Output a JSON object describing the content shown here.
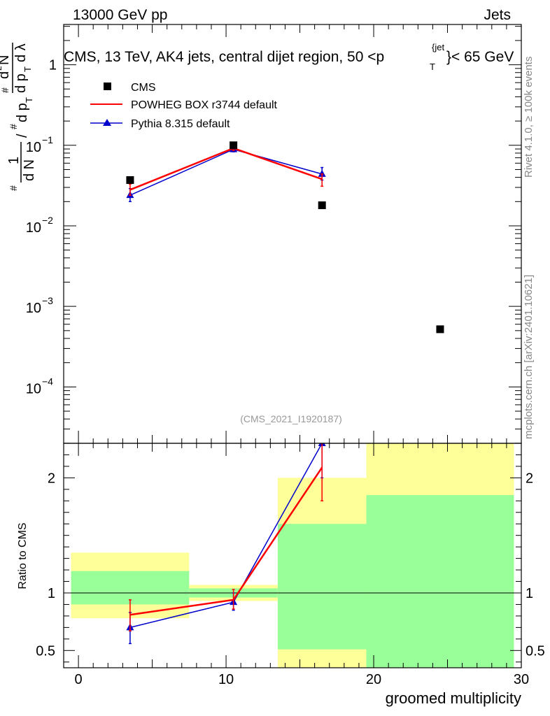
{
  "header": {
    "left": "13000 GeV pp",
    "right": "Jets",
    "plot_title_pre": "CMS, 13 TeV, AK4 jets, central dijet region, 50 <p",
    "plot_title_sup": "{jet",
    "plot_title_sub": "T",
    "plot_title_post": "}< 65 GeV"
  },
  "side_labels": {
    "rivet": "Rivet 4.1.0, ≥ 100k events",
    "mcplots": "mcplots.cern.ch [arXiv:2401.10621]"
  },
  "analysis_id": "(CMS_2021_I1920187)",
  "ylabel_main": {
    "hash1": "#",
    "one": "1",
    "dN": "d N",
    "slash": "/",
    "hash2": "#",
    "dpT": "d p",
    "T1": "T",
    "hash3": "#",
    "d2N": "d",
    "two": "2",
    "N": "N",
    "dpT2": "d p",
    "T2": "T",
    "dlambda": "d λ"
  },
  "colors": {
    "data": "#000000",
    "powheg": "#ff0000",
    "pythia": "#0000cc",
    "band_inner": "#99ff99",
    "band_outer": "#ffff99"
  },
  "chart_data": [
    {
      "type": "scatter",
      "name": "main",
      "xlim": [
        -1,
        30
      ],
      "ylim_log10": [
        -4.7,
        0.5
      ],
      "yscale": "log",
      "y_tick_labels": [
        {
          "base": "10",
          "exp": "−4",
          "value": -4
        },
        {
          "base": "10",
          "exp": "−3",
          "value": -3
        },
        {
          "base": "10",
          "exp": "−2",
          "value": -2
        },
        {
          "base": "10",
          "exp": "−1",
          "value": -1
        },
        {
          "base": "1",
          "exp": "",
          "value": 0
        }
      ],
      "legend": {
        "position": "top-left",
        "entries": [
          {
            "label": "CMS",
            "marker": "square",
            "color": "#000000"
          },
          {
            "label": "POWHEG BOX r3744 default",
            "marker": "line",
            "color": "#ff0000"
          },
          {
            "label": "Pythia 8.315 default",
            "marker": "triangle",
            "color": "#0000cc"
          }
        ]
      },
      "series": [
        {
          "name": "CMS",
          "x": [
            3.5,
            10.5,
            16.5,
            24.5
          ],
          "y": [
            0.037,
            0.1,
            0.018,
            0.00052
          ]
        },
        {
          "name": "POWHEG BOX r3744 default",
          "x": [
            3.5,
            10.5,
            16.5
          ],
          "y": [
            0.028,
            0.092,
            0.038
          ],
          "err_lo": [
            0.024,
            0.086,
            0.031
          ],
          "err_hi": [
            0.033,
            0.098,
            0.044
          ]
        },
        {
          "name": "Pythia 8.315 default",
          "x": [
            3.5,
            10.5,
            16.5
          ],
          "y": [
            0.024,
            0.089,
            0.044
          ],
          "err_lo": [
            0.02,
            0.083,
            0.037
          ],
          "err_hi": [
            0.029,
            0.095,
            0.053
          ]
        }
      ]
    },
    {
      "type": "line",
      "name": "ratio",
      "ylabel": "Ratio to CMS",
      "xlabel": "groomed multiplicity",
      "xlim": [
        -1,
        30
      ],
      "ylim": [
        0.35,
        2.3
      ],
      "x_ticks": [
        0,
        10,
        20,
        30
      ],
      "x_tick_labels": [
        "0",
        "10",
        "20",
        "30"
      ],
      "y_ticks": [
        0.5,
        1,
        2
      ],
      "y_tick_labels": [
        "0.5",
        "1",
        "2"
      ],
      "bands": [
        {
          "x0": -0.5,
          "x1": 7.5,
          "outer": [
            0.78,
            1.35
          ],
          "inner": [
            0.9,
            1.19
          ]
        },
        {
          "x0": 7.5,
          "x1": 13.5,
          "outer": [
            0.93,
            1.07
          ],
          "inner": [
            0.96,
            1.04
          ]
        },
        {
          "x0": 13.5,
          "x1": 19.5,
          "outer": [
            0.2,
            2.0
          ],
          "inner": [
            0.51,
            1.6
          ]
        },
        {
          "x0": 19.5,
          "x1": 29.5,
          "outer": [
            0.2,
            3.0
          ],
          "inner": [
            0.2,
            1.85
          ]
        }
      ],
      "series": [
        {
          "name": "POWHEG BOX r3744 default",
          "x": [
            3.5,
            10.5,
            16.5
          ],
          "y": [
            0.81,
            0.94,
            2.09
          ],
          "err_lo": [
            0.67,
            0.86,
            1.8
          ],
          "err_hi": [
            0.94,
            1.03,
            2.4
          ]
        },
        {
          "name": "Pythia 8.315 default",
          "x": [
            3.5,
            10.5,
            16.5
          ],
          "y": [
            0.7,
            0.92,
            2.3
          ],
          "err_lo": [
            0.56,
            0.85,
            2.0
          ],
          "err_hi": [
            0.83,
            1.0,
            2.6
          ]
        }
      ]
    }
  ]
}
